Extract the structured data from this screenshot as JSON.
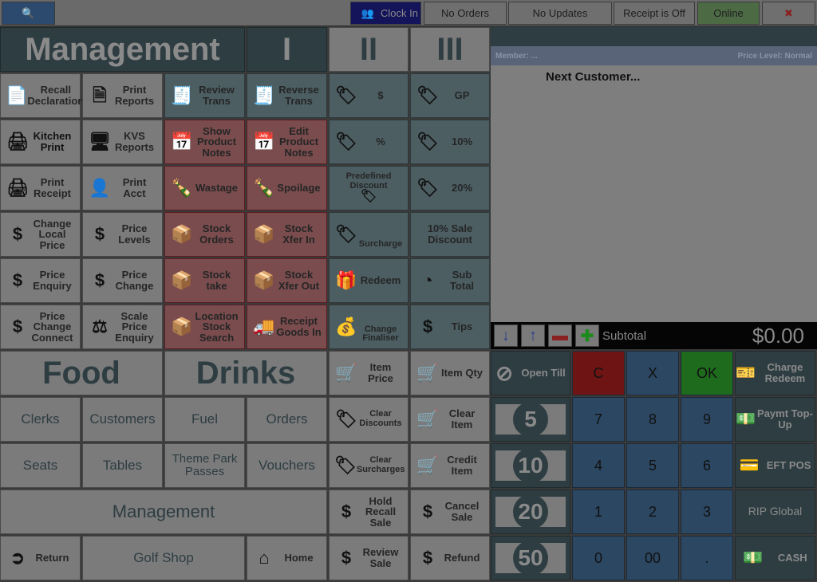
{
  "topbar": {
    "search_icon": "magnifier-icon",
    "clock_in": "Clock In",
    "no_orders": "No Orders",
    "no_updates": "No Updates",
    "receipt": "Receipt is Off",
    "online": "Online",
    "tools_icon": "screwdriver-icon"
  },
  "header": {
    "management": "Management",
    "i": "I",
    "ii": "II",
    "iii": "III"
  },
  "buttons": {
    "recall_declaration": "Recall Declaration",
    "print_reports": "Print Reports",
    "review_trans": "Review Trans",
    "reverse_trans": "Reverse Trans",
    "dollar": "$",
    "gp": "GP",
    "kitchen_print": "Kitchen Print",
    "kvs_reports": "KVS Reports",
    "show_product_notes": "Show Product Notes",
    "edit_product_notes": "Edit Product Notes",
    "percent": "%",
    "ten_pct": "10%",
    "print_receipt": "Print Receipt",
    "print_acct": "Print Acct",
    "wastage": "Wastage",
    "spoilage": "Spoilage",
    "predefined_discount": "Predefined Discount",
    "twenty_pct": "20%",
    "change_local_price": "Change Local Price",
    "price_levels": "Price Levels",
    "stock_orders": "Stock Orders",
    "stock_xfer_in": "Stock Xfer In",
    "surcharge": "Surcharge",
    "sale_discount": "10% Sale Discount",
    "price_enquiry": "Price Enquiry",
    "price_change": "Price Change",
    "stock_take": "Stock take",
    "stock_xfer_out": "Stock Xfer Out",
    "redeem": "Redeem",
    "sub_total": "Sub Total",
    "price_change_connect": "Price Change Connect",
    "scale_price_enquiry": "Scale Price Enquiry",
    "location_stock_search": "Location Stock Search",
    "receipt_goods_in": "Receipt Goods In",
    "change_finaliser": "Change Finaliser",
    "tips": "Tips",
    "food": "Food",
    "drinks": "Drinks",
    "item_price": "Item Price",
    "item_qty": "Item Qty",
    "clerks": "Clerks",
    "customers": "Customers",
    "fuel": "Fuel",
    "orders": "Orders",
    "clear_discounts": "Clear Discounts",
    "clear_item": "Clear Item",
    "seats": "Seats",
    "tables": "Tables",
    "theme_park_passes": "Theme Park Passes",
    "vouchers": "Vouchers",
    "clear_surcharges": "Clear Surcharges",
    "credit_item": "Credit Item",
    "management": "Management",
    "hold_recall_sale": "Hold Recall Sale",
    "cancel_sale": "Cancel Sale",
    "return": "Return",
    "golf_shop": "Golf Shop",
    "home": "Home",
    "review_sale": "Review Sale",
    "refund": "Refund"
  },
  "order": {
    "member": "Member: ...",
    "price_level": "Price Level: Normal",
    "next_customer": "Next Customer...",
    "subtotal_label": "Subtotal",
    "subtotal": "$0.00"
  },
  "keypad": {
    "open_till": "Open Till",
    "c": "C",
    "x": "X",
    "ok": "OK",
    "charge_redeem": "Charge Redeem",
    "n7": "7",
    "n8": "8",
    "n9": "9",
    "paymt_topup": "Paymt Top-Up",
    "n4": "4",
    "n5": "5",
    "n6": "6",
    "eftpos": "EFT POS",
    "n1": "1",
    "n2": "2",
    "n3": "3",
    "rip_global": "RIP Global",
    "n0": "0",
    "n00": "00",
    "dot": ".",
    "cash": "CASH",
    "note5": "5",
    "note10": "10",
    "note20": "20",
    "note50": "50"
  },
  "colors": {
    "keypad_blue": "#2c4762",
    "clear_red": "#6e1414",
    "ok_green": "#1e6b1e",
    "online_green": "#4c6b45",
    "clock_in_navy": "#14145a"
  }
}
